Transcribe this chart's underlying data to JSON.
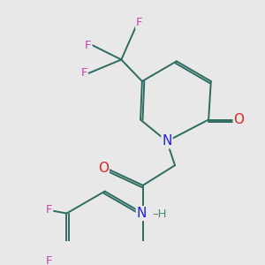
{
  "background_color": "#e8e8e8",
  "bond_color": "#2d6b5e",
  "bond_width": 1.4,
  "atom_colors": {
    "F": "#cc44aa",
    "O": "#dd2222",
    "N": "#2222dd",
    "C": "#2d6b5e",
    "H": "#4a8a7a"
  },
  "font_size": 9.5,
  "fig_size": [
    3.0,
    3.0
  ],
  "dpi": 100,
  "xlim": [
    0,
    10
  ],
  "ylim": [
    0,
    10
  ]
}
